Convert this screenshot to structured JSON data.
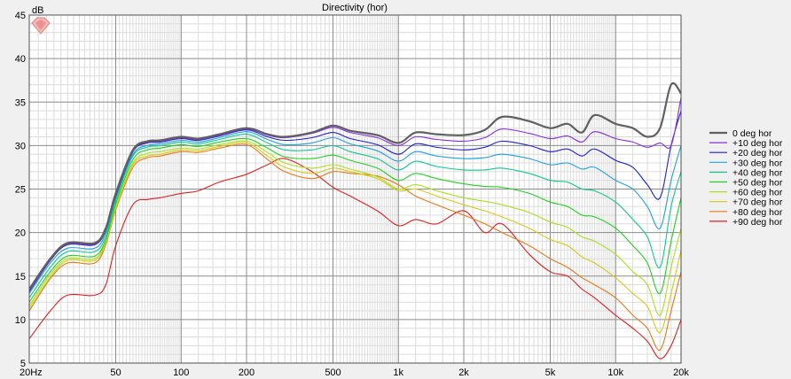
{
  "chart_data": {
    "type": "line",
    "title": "Directivity (hor)",
    "y_unit_label": "dB",
    "x_scale": "log",
    "xlim": [
      20,
      20000
    ],
    "ylim": [
      5,
      45
    ],
    "y_ticks": [
      5,
      10,
      15,
      20,
      25,
      30,
      35,
      40,
      45
    ],
    "x_ticks": [
      {
        "value": 20,
        "label": "20Hz"
      },
      {
        "value": 50,
        "label": "50"
      },
      {
        "value": 100,
        "label": "100"
      },
      {
        "value": 200,
        "label": "200"
      },
      {
        "value": 500,
        "label": "500"
      },
      {
        "value": 1000,
        "label": "1k"
      },
      {
        "value": 2000,
        "label": "2k"
      },
      {
        "value": 5000,
        "label": "5k"
      },
      {
        "value": 10000,
        "label": "10k"
      },
      {
        "value": 20000,
        "label": "20k"
      }
    ],
    "grid": true,
    "legend_position": "right",
    "x": [
      20,
      25,
      30,
      40,
      45,
      50,
      60,
      70,
      80,
      100,
      120,
      150,
      200,
      250,
      300,
      400,
      500,
      600,
      800,
      1000,
      1200,
      1500,
      2000,
      2500,
      3000,
      4000,
      5000,
      6000,
      7000,
      8000,
      10000,
      12000,
      14000,
      16000,
      18000,
      20000
    ],
    "series": [
      {
        "name": "0 deg hor",
        "color": "#606060",
        "values": [
          13.5,
          17.0,
          18.8,
          18.8,
          20.5,
          24.5,
          29.5,
          30.5,
          30.6,
          31.0,
          30.8,
          31.3,
          32.0,
          31.3,
          31.0,
          31.5,
          32.3,
          31.7,
          31.2,
          30.3,
          31.5,
          31.3,
          31.2,
          31.8,
          33.3,
          32.8,
          32.0,
          32.5,
          31.5,
          33.5,
          32.5,
          32.0,
          31.0,
          32.0,
          37.0,
          36.0
        ]
      },
      {
        "name": "+10 deg hor",
        "color": "#8a2be2",
        "values": [
          13.3,
          16.9,
          18.7,
          18.7,
          20.4,
          24.3,
          29.4,
          30.4,
          30.5,
          30.9,
          30.7,
          31.2,
          31.9,
          31.2,
          30.9,
          31.4,
          32.1,
          31.5,
          30.9,
          30.0,
          31.0,
          30.7,
          30.5,
          30.9,
          31.9,
          31.4,
          30.8,
          31.1,
          30.4,
          31.6,
          30.8,
          30.4,
          29.8,
          30.3,
          30.0,
          35.5
        ]
      },
      {
        "name": "+20 deg hor",
        "color": "#2020d0",
        "values": [
          13.2,
          16.8,
          18.6,
          18.6,
          20.3,
          24.2,
          29.3,
          30.3,
          30.4,
          30.8,
          30.6,
          31.1,
          31.8,
          31.0,
          30.6,
          30.9,
          31.5,
          30.8,
          30.1,
          29.0,
          30.2,
          29.8,
          29.5,
          29.8,
          30.5,
          30.0,
          29.3,
          29.6,
          28.8,
          29.6,
          28.3,
          27.5,
          25.5,
          24.0,
          30.0,
          34.0
        ]
      },
      {
        "name": "+30 deg hor",
        "color": "#1fa0e0",
        "values": [
          13.0,
          16.5,
          18.2,
          18.2,
          20.0,
          24.0,
          29.0,
          30.0,
          30.2,
          30.6,
          30.4,
          30.9,
          31.6,
          30.7,
          30.1,
          30.3,
          30.9,
          30.2,
          29.4,
          28.2,
          29.3,
          28.8,
          28.5,
          28.6,
          29.0,
          28.5,
          27.8,
          28.0,
          27.3,
          27.5,
          26.0,
          25.0,
          23.0,
          20.5,
          26.0,
          30.0
        ]
      },
      {
        "name": "+40 deg hor",
        "color": "#10c890",
        "values": [
          12.5,
          16.0,
          17.8,
          17.8,
          19.6,
          23.7,
          28.8,
          29.8,
          30.0,
          30.4,
          30.2,
          30.7,
          31.3,
          30.3,
          29.5,
          29.5,
          30.0,
          29.3,
          28.5,
          27.2,
          28.2,
          27.6,
          27.2,
          27.2,
          27.4,
          26.8,
          26.0,
          25.8,
          25.0,
          24.8,
          23.5,
          21.5,
          19.5,
          16.0,
          23.0,
          27.0
        ]
      },
      {
        "name": "+50 deg hor",
        "color": "#20d020",
        "values": [
          12.0,
          15.5,
          17.3,
          17.3,
          19.2,
          23.3,
          28.4,
          29.5,
          29.7,
          30.1,
          29.9,
          30.4,
          30.8,
          29.7,
          28.7,
          28.5,
          28.9,
          28.3,
          27.4,
          26.0,
          26.8,
          26.2,
          25.6,
          25.3,
          25.2,
          24.5,
          23.5,
          23.0,
          22.0,
          21.8,
          20.5,
          18.5,
          16.5,
          13.0,
          19.0,
          24.0
        ]
      },
      {
        "name": "+60 deg hor",
        "color": "#a8e020",
        "values": [
          11.6,
          15.2,
          17.0,
          17.0,
          19.0,
          23.0,
          28.0,
          29.1,
          29.3,
          29.7,
          29.6,
          30.1,
          30.5,
          29.2,
          28.0,
          27.4,
          27.8,
          27.3,
          26.4,
          25.0,
          25.5,
          24.8,
          24.0,
          23.6,
          23.2,
          22.3,
          21.2,
          20.6,
          19.5,
          19.0,
          17.5,
          15.5,
          14.0,
          10.5,
          16.0,
          20.5
        ]
      },
      {
        "name": "+70 deg hor",
        "color": "#d8c818",
        "values": [
          11.3,
          14.9,
          16.8,
          16.8,
          18.8,
          22.8,
          27.8,
          28.8,
          29.0,
          29.5,
          29.4,
          29.9,
          30.3,
          28.8,
          27.5,
          26.8,
          27.4,
          27.0,
          26.2,
          24.8,
          25.0,
          24.2,
          23.2,
          22.5,
          21.8,
          20.5,
          19.2,
          18.5,
          17.2,
          16.5,
          14.8,
          13.0,
          11.5,
          8.5,
          13.0,
          18.0
        ]
      },
      {
        "name": "+80 deg hor",
        "color": "#e87818",
        "values": [
          11.0,
          14.7,
          16.5,
          16.5,
          18.6,
          22.6,
          27.5,
          28.6,
          28.8,
          29.3,
          29.2,
          29.7,
          30.1,
          28.4,
          27.0,
          26.2,
          27.0,
          26.8,
          26.5,
          25.5,
          24.2,
          23.2,
          22.0,
          21.0,
          20.0,
          18.5,
          17.0,
          16.0,
          14.8,
          14.0,
          12.5,
          10.5,
          9.0,
          6.5,
          11.0,
          15.5
        ]
      },
      {
        "name": "+90 deg hor",
        "color": "#e02020",
        "values": [
          7.8,
          11.0,
          12.8,
          12.8,
          14.0,
          18.5,
          23.2,
          23.8,
          24.0,
          24.5,
          24.8,
          25.8,
          26.7,
          27.8,
          28.5,
          27.0,
          25.2,
          24.2,
          22.5,
          20.8,
          21.5,
          21.0,
          22.5,
          20.0,
          21.0,
          17.5,
          15.5,
          15.0,
          13.5,
          12.5,
          10.5,
          9.0,
          7.5,
          5.5,
          7.0,
          10.0
        ]
      }
    ]
  }
}
